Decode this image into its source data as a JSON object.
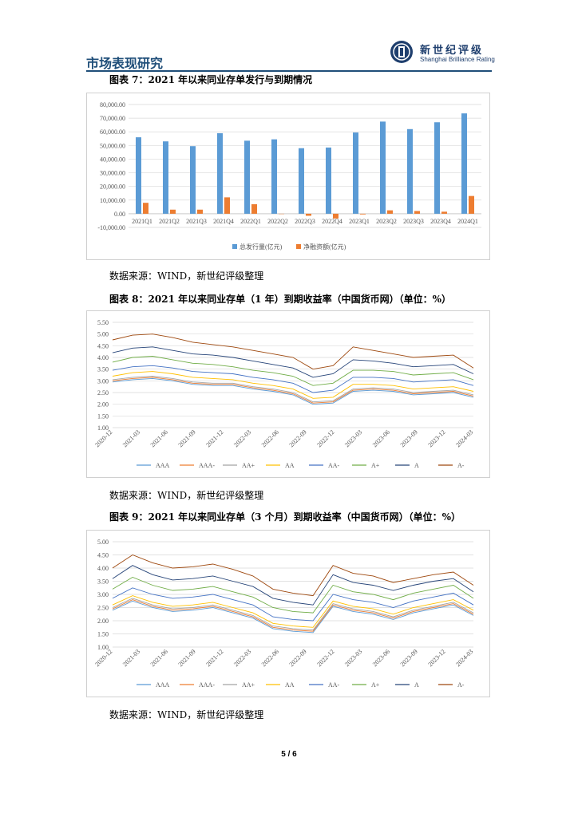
{
  "header": {
    "section_title": "市场表现研究"
  },
  "logo": {
    "cn": "新世纪评级",
    "en": "Shanghai Brilliance Rating"
  },
  "figures": [
    {
      "title": "图表 7：2021 年以来同业存单发行与到期情况",
      "source": "数据来源：WIND，新世纪评级整理"
    },
    {
      "title": "图表 8：2021 年以来同业存单（1 年）到期收益率（中国货币网）（单位：%）",
      "source": "数据来源：WIND，新世纪评级整理"
    },
    {
      "title": "图表 9：2021 年以来同业存单（3 个月）到期收益率（中国货币网）（单位：%）",
      "source": "数据来源：WIND，新世纪评级整理"
    }
  ],
  "page_number": "5 / 6",
  "chart_data": [
    {
      "type": "bar",
      "categories": [
        "2021Q1",
        "2021Q2",
        "2021Q3",
        "2021Q4",
        "2022Q1",
        "2022Q2",
        "2022Q3",
        "2022Q4",
        "2023Q1",
        "2023Q2",
        "2023Q3",
        "2023Q4",
        "2024Q1"
      ],
      "series": [
        {
          "name": "总发行量(亿元)",
          "color": "#5b9bd5",
          "values": [
            56000,
            53000,
            49500,
            59000,
            53500,
            54500,
            48000,
            48500,
            59500,
            67500,
            62000,
            67000,
            73500
          ]
        },
        {
          "name": "净融资额(亿元)",
          "color": "#ed7d31",
          "values": [
            8000,
            3000,
            3000,
            12000,
            7000,
            0,
            -1500,
            -3500,
            -500,
            2500,
            2000,
            1500,
            13000
          ]
        }
      ],
      "yticks": [
        "80,000.00",
        "70,000.00",
        "60,000.00",
        "50,000.00",
        "40,000.00",
        "30,000.00",
        "20,000.00",
        "10,000.00",
        "0.00",
        "-10,000.00"
      ],
      "ylim": [
        -10000,
        80000
      ],
      "legend_position": "bottom"
    },
    {
      "type": "line",
      "x_ticks": [
        "2020-12",
        "2021-03",
        "2021-06",
        "2021-09",
        "2021-12",
        "2022-03",
        "2022-06",
        "2022-09",
        "2022-12",
        "2023-03",
        "2023-06",
        "2023-09",
        "2023-12",
        "2024-03"
      ],
      "y_ticks": [
        "5.50",
        "5.00",
        "4.50",
        "4.00",
        "3.50",
        "3.00",
        "2.50",
        "2.00",
        "1.50",
        "1.00"
      ],
      "ylim": [
        1.0,
        5.5
      ],
      "legend_position": "bottom",
      "series": [
        {
          "name": "AAA",
          "color": "#5b9bd5",
          "values": [
            2.95,
            3.05,
            3.1,
            3.0,
            2.85,
            2.8,
            2.8,
            2.65,
            2.55,
            2.4,
            2.0,
            2.05,
            2.55,
            2.6,
            2.55,
            2.4,
            2.45,
            2.5,
            2.3
          ]
        },
        {
          "name": "AAA-",
          "color": "#ed7d31",
          "values": [
            3.0,
            3.1,
            3.15,
            3.05,
            2.9,
            2.85,
            2.85,
            2.7,
            2.6,
            2.45,
            2.05,
            2.1,
            2.6,
            2.65,
            2.6,
            2.45,
            2.5,
            2.55,
            2.35
          ]
        },
        {
          "name": "AA+",
          "color": "#a5a5a5",
          "values": [
            3.05,
            3.15,
            3.2,
            3.1,
            2.95,
            2.9,
            2.9,
            2.75,
            2.65,
            2.5,
            2.1,
            2.15,
            2.65,
            2.7,
            2.65,
            2.5,
            2.55,
            2.6,
            2.4
          ]
        },
        {
          "name": "AA",
          "color": "#ffc000",
          "values": [
            3.2,
            3.35,
            3.4,
            3.3,
            3.15,
            3.1,
            3.05,
            2.9,
            2.8,
            2.65,
            2.25,
            2.3,
            2.85,
            2.85,
            2.8,
            2.65,
            2.7,
            2.75,
            2.55
          ]
        },
        {
          "name": "AA-",
          "color": "#4472c4",
          "values": [
            3.45,
            3.6,
            3.65,
            3.55,
            3.4,
            3.35,
            3.3,
            3.15,
            3.05,
            2.9,
            2.5,
            2.6,
            3.15,
            3.15,
            3.1,
            2.95,
            3.0,
            3.05,
            2.8
          ]
        },
        {
          "name": "A+",
          "color": "#70ad47",
          "values": [
            3.8,
            4.0,
            4.05,
            3.9,
            3.75,
            3.7,
            3.6,
            3.45,
            3.35,
            3.2,
            2.8,
            2.9,
            3.45,
            3.45,
            3.4,
            3.25,
            3.3,
            3.35,
            3.05
          ]
        },
        {
          "name": "A",
          "color": "#264478",
          "values": [
            4.2,
            4.4,
            4.45,
            4.3,
            4.15,
            4.1,
            4.0,
            3.85,
            3.7,
            3.55,
            3.15,
            3.3,
            3.9,
            3.85,
            3.75,
            3.6,
            3.65,
            3.7,
            3.3
          ]
        },
        {
          "name": "A-",
          "color": "#9e480e",
          "values": [
            4.75,
            4.95,
            5.0,
            4.85,
            4.65,
            4.55,
            4.45,
            4.3,
            4.15,
            4.0,
            3.5,
            3.65,
            4.45,
            4.3,
            4.15,
            4.0,
            4.05,
            4.1,
            3.55
          ]
        }
      ]
    },
    {
      "type": "line",
      "x_ticks": [
        "2020-12",
        "2021-03",
        "2021-06",
        "2021-09",
        "2021-12",
        "2022-03",
        "2022-06",
        "2022-09",
        "2022-12",
        "2023-03",
        "2023-06",
        "2023-09",
        "2023-12",
        "2024-03"
      ],
      "y_ticks": [
        "5.00",
        "4.50",
        "4.00",
        "3.50",
        "3.00",
        "2.50",
        "2.00",
        "1.50",
        "1.00"
      ],
      "ylim": [
        1.0,
        5.0
      ],
      "legend_position": "bottom",
      "series": [
        {
          "name": "AAA",
          "color": "#5b9bd5",
          "values": [
            2.4,
            2.75,
            2.5,
            2.35,
            2.4,
            2.5,
            2.3,
            2.1,
            1.7,
            1.6,
            1.55,
            2.55,
            2.35,
            2.25,
            2.05,
            2.3,
            2.45,
            2.6,
            2.2
          ]
        },
        {
          "name": "AAA-",
          "color": "#ed7d31",
          "values": [
            2.45,
            2.8,
            2.55,
            2.4,
            2.45,
            2.55,
            2.35,
            2.15,
            1.75,
            1.65,
            1.6,
            2.6,
            2.4,
            2.3,
            2.1,
            2.35,
            2.5,
            2.65,
            2.25
          ]
        },
        {
          "name": "AA+",
          "color": "#a5a5a5",
          "values": [
            2.5,
            2.85,
            2.6,
            2.45,
            2.5,
            2.6,
            2.4,
            2.2,
            1.8,
            1.7,
            1.65,
            2.65,
            2.45,
            2.35,
            2.15,
            2.4,
            2.55,
            2.7,
            2.3
          ]
        },
        {
          "name": "AA",
          "color": "#ffc000",
          "values": [
            2.6,
            2.95,
            2.7,
            2.55,
            2.6,
            2.7,
            2.5,
            2.3,
            1.9,
            1.8,
            1.75,
            2.75,
            2.55,
            2.45,
            2.25,
            2.5,
            2.65,
            2.8,
            2.4
          ]
        },
        {
          "name": "AA-",
          "color": "#4472c4",
          "values": [
            2.85,
            3.25,
            3.0,
            2.85,
            2.9,
            3.0,
            2.8,
            2.6,
            2.15,
            2.05,
            2.0,
            3.0,
            2.8,
            2.7,
            2.5,
            2.75,
            2.9,
            3.05,
            2.6
          ]
        },
        {
          "name": "A+",
          "color": "#70ad47",
          "values": [
            3.2,
            3.65,
            3.35,
            3.15,
            3.2,
            3.3,
            3.1,
            2.9,
            2.5,
            2.35,
            2.3,
            3.35,
            3.1,
            3.0,
            2.8,
            3.05,
            3.2,
            3.35,
            2.85
          ]
        },
        {
          "name": "A",
          "color": "#264478",
          "values": [
            3.6,
            4.1,
            3.75,
            3.55,
            3.6,
            3.7,
            3.5,
            3.3,
            2.85,
            2.7,
            2.6,
            3.75,
            3.45,
            3.35,
            3.15,
            3.35,
            3.5,
            3.6,
            3.1
          ]
        },
        {
          "name": "A-",
          "color": "#9e480e",
          "values": [
            4.0,
            4.5,
            4.2,
            4.0,
            4.05,
            4.15,
            3.95,
            3.7,
            3.2,
            3.05,
            2.95,
            4.1,
            3.8,
            3.7,
            3.45,
            3.6,
            3.75,
            3.85,
            3.35
          ]
        }
      ]
    }
  ]
}
